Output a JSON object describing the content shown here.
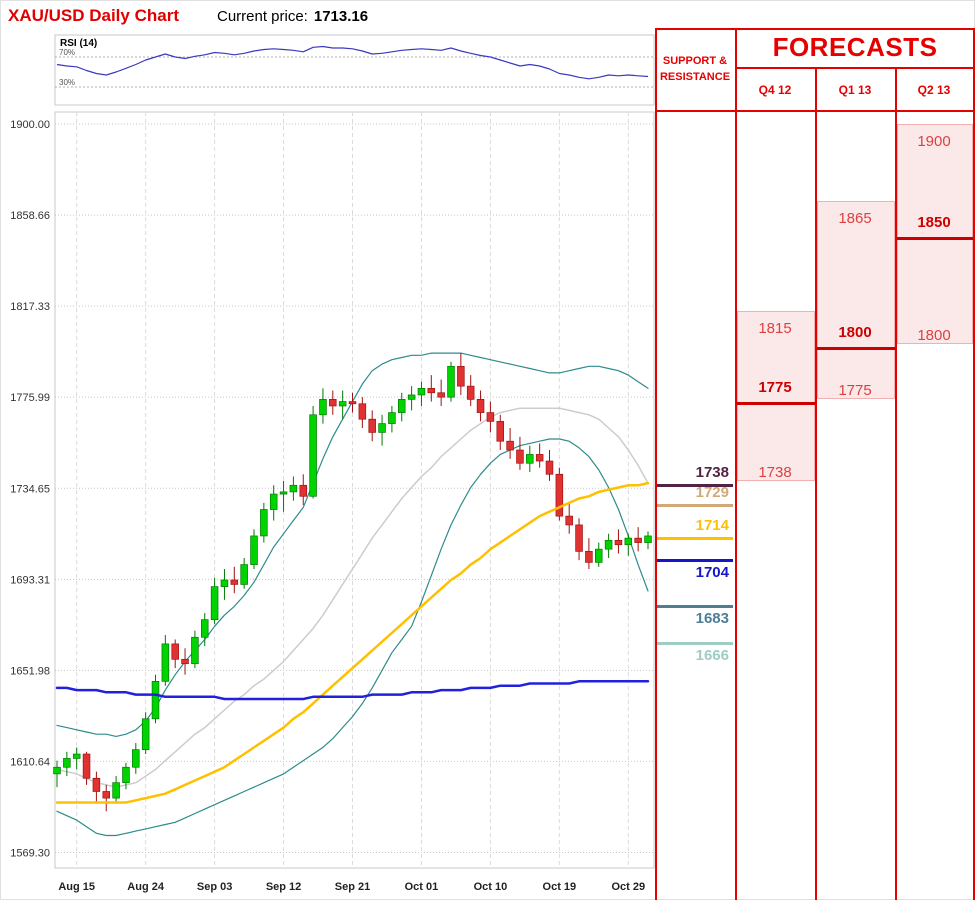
{
  "header": {
    "title": "XAU/USD Daily Chart",
    "current_price_label": "Current price:",
    "current_price": "1713.16"
  },
  "right_panel": {
    "sr_header_line1": "SUPPORT &",
    "sr_header_line2": "RESISTANCE",
    "forecasts_title": "FORECASTS",
    "accent_color": "#e60000",
    "box_fill": "#fbe9e9",
    "box_border": "#f2b0b0",
    "number_color": "#dd4040",
    "number_bold_color": "#cc0000",
    "target_line_color": "#cc0000",
    "forecast_columns": [
      {
        "label": "Q4 12",
        "high": 1815,
        "target": 1775,
        "low": 1738
      },
      {
        "label": "Q1 13",
        "high": 1865,
        "target": 1800,
        "low": 1775
      },
      {
        "label": "Q2 13",
        "high": 1900,
        "target": 1850,
        "low": 1800
      }
    ],
    "support_resistance": [
      {
        "price": 1738,
        "color": "#532345",
        "position": "above"
      },
      {
        "price": 1729,
        "color": "#d2aa78",
        "position": "above"
      },
      {
        "price": 1714,
        "color": "#ffc000",
        "position": "above"
      },
      {
        "price": 1704,
        "color": "#1616c8",
        "position": "below"
      },
      {
        "price": 1683,
        "color": "#4e7e96",
        "position": "below"
      },
      {
        "price": 1666,
        "color": "#9fccc4",
        "position": "below"
      }
    ]
  },
  "chart_data": {
    "type": "candlestick",
    "title": "XAU/USD Daily Chart",
    "current_price": 1713.16,
    "ylim": [
      1569.3,
      1900.0
    ],
    "y_ticks": [
      "1900.00",
      "1858.66",
      "1817.33",
      "1775.99",
      "1734.65",
      "1693.31",
      "1651.98",
      "1610.64",
      "1569.30"
    ],
    "x_ticks": [
      "Aug 15",
      "Aug 24",
      "Sep 03",
      "Sep 12",
      "Sep 21",
      "Oct 01",
      "Oct 10",
      "Oct 19",
      "Oct 29"
    ],
    "x_tick_indices": [
      2,
      9,
      16,
      23,
      30,
      37,
      44,
      51,
      58
    ],
    "up_color": "#00d400",
    "down_color": "#e03232",
    "candles": [
      [
        1605,
        1611,
        1599,
        1608
      ],
      [
        1608,
        1615,
        1604,
        1612
      ],
      [
        1612,
        1617,
        1607,
        1614
      ],
      [
        1614,
        1615,
        1600,
        1603
      ],
      [
        1603,
        1606,
        1592,
        1597
      ],
      [
        1597,
        1600,
        1588,
        1594
      ],
      [
        1594,
        1604,
        1592,
        1601
      ],
      [
        1601,
        1610,
        1598,
        1608
      ],
      [
        1608,
        1619,
        1605,
        1616
      ],
      [
        1616,
        1633,
        1614,
        1630
      ],
      [
        1630,
        1650,
        1628,
        1647
      ],
      [
        1647,
        1668,
        1645,
        1664
      ],
      [
        1664,
        1666,
        1653,
        1657
      ],
      [
        1657,
        1662,
        1650,
        1655
      ],
      [
        1655,
        1670,
        1653,
        1667
      ],
      [
        1667,
        1678,
        1663,
        1675
      ],
      [
        1675,
        1694,
        1673,
        1690
      ],
      [
        1690,
        1698,
        1684,
        1693
      ],
      [
        1693,
        1699,
        1687,
        1691
      ],
      [
        1691,
        1703,
        1689,
        1700
      ],
      [
        1700,
        1716,
        1698,
        1713
      ],
      [
        1713,
        1728,
        1710,
        1725
      ],
      [
        1725,
        1736,
        1720,
        1732
      ],
      [
        1732,
        1738,
        1724,
        1733
      ],
      [
        1733,
        1740,
        1729,
        1736
      ],
      [
        1736,
        1741,
        1727,
        1731
      ],
      [
        1731,
        1772,
        1730,
        1768
      ],
      [
        1768,
        1780,
        1764,
        1775
      ],
      [
        1775,
        1779,
        1768,
        1772
      ],
      [
        1772,
        1779,
        1766,
        1774
      ],
      [
        1774,
        1778,
        1769,
        1773
      ],
      [
        1773,
        1776,
        1762,
        1766
      ],
      [
        1766,
        1770,
        1756,
        1760
      ],
      [
        1760,
        1768,
        1754,
        1764
      ],
      [
        1764,
        1772,
        1760,
        1769
      ],
      [
        1769,
        1778,
        1765,
        1775
      ],
      [
        1775,
        1781,
        1770,
        1777
      ],
      [
        1777,
        1783,
        1772,
        1780
      ],
      [
        1780,
        1786,
        1774,
        1778
      ],
      [
        1778,
        1784,
        1772,
        1776
      ],
      [
        1776,
        1792,
        1774,
        1790
      ],
      [
        1790,
        1796,
        1777,
        1781
      ],
      [
        1781,
        1786,
        1772,
        1775
      ],
      [
        1775,
        1779,
        1765,
        1769
      ],
      [
        1769,
        1774,
        1760,
        1765
      ],
      [
        1765,
        1768,
        1752,
        1756
      ],
      [
        1756,
        1762,
        1748,
        1752
      ],
      [
        1752,
        1758,
        1743,
        1746
      ],
      [
        1746,
        1754,
        1742,
        1750
      ],
      [
        1750,
        1755,
        1744,
        1747
      ],
      [
        1747,
        1752,
        1738,
        1741
      ],
      [
        1741,
        1744,
        1720,
        1722
      ],
      [
        1722,
        1728,
        1714,
        1718
      ],
      [
        1718,
        1721,
        1702,
        1706
      ],
      [
        1706,
        1712,
        1698,
        1701
      ],
      [
        1701,
        1710,
        1699,
        1707
      ],
      [
        1707,
        1714,
        1703,
        1711
      ],
      [
        1711,
        1716,
        1705,
        1709
      ],
      [
        1709,
        1714,
        1704,
        1712
      ],
      [
        1712,
        1717,
        1706,
        1710
      ],
      [
        1710,
        1715,
        1707,
        1713
      ]
    ],
    "overlays": {
      "bollinger_upper": {
        "name": "Bollinger upper band",
        "color": "#2e8b8b",
        "width": 1.2,
        "values": [
          1627,
          1626,
          1625,
          1624,
          1623,
          1623,
          1622,
          1623,
          1625,
          1629,
          1635,
          1643,
          1650,
          1656,
          1661,
          1666,
          1672,
          1677,
          1681,
          1686,
          1692,
          1700,
          1708,
          1714,
          1720,
          1726,
          1737,
          1748,
          1758,
          1766,
          1774,
          1782,
          1788,
          1791,
          1793,
          1794,
          1795,
          1795,
          1796,
          1796,
          1796,
          1796,
          1795,
          1794,
          1793,
          1792,
          1791,
          1790,
          1789,
          1788,
          1787,
          1787,
          1788,
          1789,
          1790,
          1790,
          1789,
          1788,
          1786,
          1783,
          1780
        ]
      },
      "bollinger_lower": {
        "name": "Bollinger lower band",
        "color": "#2e8b8b",
        "width": 1.2,
        "values": [
          1588,
          1586,
          1584,
          1581,
          1578,
          1577,
          1577,
          1578,
          1579,
          1580,
          1581,
          1582,
          1583,
          1585,
          1587,
          1589,
          1591,
          1593,
          1595,
          1597,
          1599,
          1601,
          1603,
          1605,
          1608,
          1611,
          1614,
          1617,
          1621,
          1626,
          1631,
          1637,
          1644,
          1652,
          1660,
          1666,
          1672,
          1683,
          1695,
          1707,
          1718,
          1727,
          1735,
          1741,
          1746,
          1750,
          1752,
          1754,
          1755,
          1756,
          1757,
          1757,
          1756,
          1753,
          1749,
          1743,
          1735,
          1725,
          1713,
          1700,
          1688
        ]
      },
      "sma20": {
        "name": "20-day moving average",
        "color": "#cccccc",
        "width": 1.5,
        "values": [
          1607,
          1606,
          1605,
          1603,
          1601,
          1600,
          1599,
          1600,
          1601,
          1604,
          1607,
          1611,
          1615,
          1619,
          1623,
          1626,
          1630,
          1634,
          1638,
          1641,
          1645,
          1648,
          1652,
          1656,
          1661,
          1666,
          1671,
          1677,
          1684,
          1691,
          1698,
          1705,
          1712,
          1718,
          1724,
          1730,
          1735,
          1740,
          1744,
          1749,
          1753,
          1757,
          1761,
          1764,
          1767,
          1769,
          1770,
          1771,
          1771,
          1771,
          1771,
          1771,
          1770,
          1769,
          1768,
          1766,
          1762,
          1758,
          1752,
          1745,
          1737
        ]
      },
      "sma100": {
        "name": "100-day moving average",
        "color": "#ffc000",
        "width": 2.5,
        "values": [
          1592,
          1592,
          1592,
          1592,
          1592,
          1592,
          1592,
          1592,
          1593,
          1594,
          1595,
          1596,
          1598,
          1600,
          1602,
          1604,
          1606,
          1608,
          1611,
          1614,
          1617,
          1620,
          1623,
          1626,
          1630,
          1633,
          1637,
          1641,
          1645,
          1649,
          1653,
          1657,
          1661,
          1665,
          1669,
          1673,
          1677,
          1681,
          1685,
          1689,
          1693,
          1696,
          1700,
          1703,
          1707,
          1710,
          1713,
          1716,
          1719,
          1722,
          1724,
          1726,
          1728,
          1730,
          1731,
          1733,
          1734,
          1735,
          1736,
          1736,
          1737
        ]
      },
      "sma200": {
        "name": "200-day moving average",
        "color": "#2121dd",
        "width": 2.5,
        "values": [
          1644,
          1644,
          1643,
          1643,
          1643,
          1642,
          1642,
          1642,
          1641,
          1641,
          1641,
          1640,
          1640,
          1640,
          1640,
          1640,
          1640,
          1639,
          1639,
          1639,
          1639,
          1639,
          1639,
          1639,
          1639,
          1639,
          1640,
          1640,
          1640,
          1640,
          1640,
          1640,
          1641,
          1641,
          1641,
          1641,
          1642,
          1642,
          1642,
          1643,
          1643,
          1643,
          1644,
          1644,
          1644,
          1645,
          1645,
          1645,
          1646,
          1646,
          1646,
          1646,
          1646,
          1647,
          1647,
          1647,
          1647,
          1647,
          1647,
          1647,
          1647
        ]
      }
    },
    "rsi": {
      "label": "RSI (14)",
      "upper_label": "70%",
      "lower_label": "30%",
      "upper": 70,
      "lower": 30,
      "color": "#3a3ac0",
      "values": [
        60,
        58,
        57,
        52,
        48,
        46,
        50,
        55,
        60,
        66,
        70,
        74,
        70,
        68,
        71,
        73,
        76,
        75,
        73,
        75,
        78,
        80,
        81,
        80,
        79,
        77,
        83,
        84,
        82,
        82,
        81,
        78,
        74,
        75,
        77,
        79,
        80,
        81,
        80,
        79,
        82,
        78,
        75,
        72,
        70,
        66,
        62,
        58,
        60,
        58,
        54,
        48,
        46,
        43,
        41,
        43,
        46,
        45,
        46,
        45,
        44
      ]
    }
  }
}
